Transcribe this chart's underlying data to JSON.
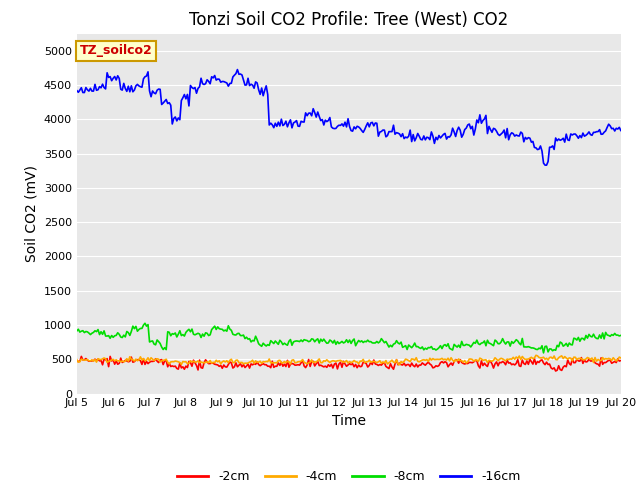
{
  "title": "Tonzi Soil CO2 Profile: Tree (West) CO2",
  "ylabel": "Soil CO2 (mV)",
  "xlabel": "Time",
  "legend_label": "TZ_soilco2",
  "series_labels": [
    "-2cm",
    "-4cm",
    "-8cm",
    "-16cm"
  ],
  "series_colors": [
    "#ff0000",
    "#ffaa00",
    "#00dd00",
    "#0000ff"
  ],
  "x_start": 5.0,
  "x_end": 20.0,
  "ylim": [
    0,
    5250
  ],
  "yticks": [
    0,
    500,
    1000,
    1500,
    2000,
    2500,
    3000,
    3500,
    4000,
    4500,
    5000
  ],
  "xticks": [
    5,
    6,
    7,
    8,
    9,
    10,
    11,
    12,
    13,
    14,
    15,
    16,
    17,
    18,
    19,
    20
  ],
  "xtick_labels": [
    "Jul 5",
    "Jul 6",
    "Jul 7",
    "Jul 8",
    "Jul 9",
    "Jul 10",
    "Jul 11",
    "Jul 12",
    "Jul 13",
    "Jul 14",
    "Jul 15",
    "Jul 16",
    "Jul 17",
    "Jul 18",
    "Jul 19",
    "Jul 20"
  ],
  "bg_color": "#e8e8e8",
  "fig_color": "#ffffff",
  "line_width": 1.2,
  "title_fontsize": 12,
  "axis_fontsize": 10,
  "tick_fontsize": 8,
  "legend_box_color": "#ffffcc",
  "legend_box_edge": "#cc9900",
  "legend_text_color": "#cc0000"
}
